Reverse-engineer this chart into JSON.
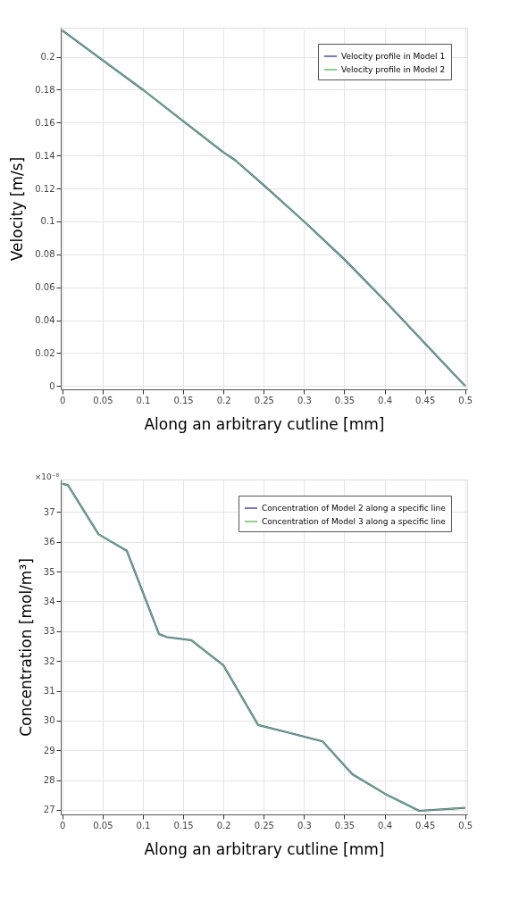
{
  "chart_data": [
    {
      "type": "line",
      "xlabel": "Along an arbitrary cutline [mm]",
      "ylabel": "Velocity [m/s]",
      "xlim": [
        -0.002,
        0.5025
      ],
      "ylim": [
        -0.002,
        0.2177
      ],
      "xticks": [
        0,
        0.05,
        0.1,
        0.15,
        0.2,
        0.25,
        0.3,
        0.35,
        0.4,
        0.45,
        0.5
      ],
      "yticks": [
        0,
        0.02,
        0.04,
        0.06,
        0.08,
        0.1,
        0.12,
        0.14,
        0.16,
        0.18,
        0.2
      ],
      "grid": true,
      "legend": "top right",
      "line_style": "solid",
      "x": [
        0,
        0.05,
        0.1,
        0.15,
        0.2,
        0.215,
        0.25,
        0.3,
        0.35,
        0.4,
        0.45,
        0.5
      ],
      "series": [
        {
          "name": "Velocity profile in Model 1",
          "color": "#4b4fa0",
          "values": [
            0.216,
            0.198,
            0.18,
            0.161,
            0.142,
            0.137,
            0.122,
            0.1,
            0.077,
            0.052,
            0.026,
            0.0
          ]
        },
        {
          "name": "Velocity profile in Model 2",
          "color": "#6dbb6d",
          "values": [
            0.216,
            0.198,
            0.18,
            0.161,
            0.142,
            0.137,
            0.122,
            0.1,
            0.077,
            0.052,
            0.026,
            0.0
          ]
        }
      ]
    },
    {
      "type": "line",
      "xlabel": "Along an arbitrary cutline [mm]",
      "ylabel": "Concentration  [mol/m³]",
      "annotations": [
        "×10⁻⁸"
      ],
      "xlim": [
        -0.002,
        0.5025
      ],
      "ylim": [
        26.85,
        38.09
      ],
      "xticks": [
        0,
        0.05,
        0.1,
        0.15,
        0.2,
        0.25,
        0.3,
        0.35,
        0.4,
        0.45,
        0.5
      ],
      "yticks": [
        27,
        28,
        29,
        30,
        31,
        32,
        33,
        34,
        35,
        36,
        37
      ],
      "grid": true,
      "legend": "top right",
      "line_style": "solid",
      "x": [
        0,
        0.007,
        0.045,
        0.08,
        0.12,
        0.13,
        0.16,
        0.2,
        0.243,
        0.28,
        0.323,
        0.36,
        0.4,
        0.443,
        0.5
      ],
      "series": [
        {
          "name": "Concentration of Model 2 along a specific line",
          "color": "#4b4fa0",
          "values": [
            37.95,
            37.9,
            36.25,
            35.7,
            32.9,
            32.8,
            32.7,
            31.85,
            29.85,
            29.6,
            29.3,
            28.2,
            27.55,
            26.97,
            27.07
          ]
        },
        {
          "name": "Concentration of Model 3 along a specific line",
          "color": "#6dbb6d",
          "values": [
            37.95,
            37.9,
            36.25,
            35.7,
            32.9,
            32.8,
            32.7,
            31.85,
            29.85,
            29.6,
            29.3,
            28.2,
            27.55,
            26.97,
            27.07
          ]
        }
      ]
    }
  ]
}
